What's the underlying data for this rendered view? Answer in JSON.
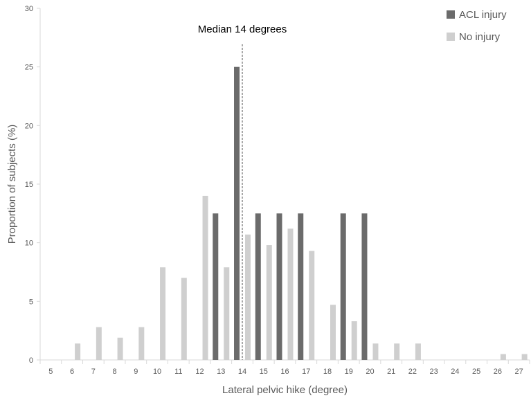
{
  "chart_data": {
    "type": "bar",
    "title": "",
    "xlabel": "Lateral pelvic hike (degree)",
    "ylabel": "Proportion of subjects (%)",
    "ylim": [
      0,
      30
    ],
    "yticks": [
      0,
      5,
      10,
      15,
      20,
      25,
      30
    ],
    "categories": [
      "5",
      "6",
      "7",
      "8",
      "9",
      "10",
      "11",
      "12",
      "13",
      "14",
      "15",
      "16",
      "17",
      "18",
      "19",
      "20",
      "21",
      "22",
      "23",
      "24",
      "25",
      "26",
      "27"
    ],
    "series": [
      {
        "name": "ACL injury",
        "color": "#6b6b6b",
        "values": [
          0,
          0,
          0,
          0,
          0,
          0,
          0,
          0,
          12.5,
          25,
          12.5,
          12.5,
          12.5,
          0,
          12.5,
          12.5,
          0,
          0,
          0,
          0,
          0,
          0,
          0
        ]
      },
      {
        "name": "No injury",
        "color": "#cfcfcf",
        "values": [
          0,
          1.4,
          2.8,
          1.9,
          2.8,
          7.9,
          7.0,
          14.0,
          7.9,
          10.7,
          9.8,
          11.2,
          9.3,
          4.7,
          3.3,
          1.4,
          1.4,
          1.4,
          0,
          0,
          0,
          0.5,
          0.5
        ]
      }
    ],
    "median_line": {
      "x": 14,
      "label": "Median 14 degrees"
    },
    "legend_position": "top-right",
    "grid": false
  }
}
